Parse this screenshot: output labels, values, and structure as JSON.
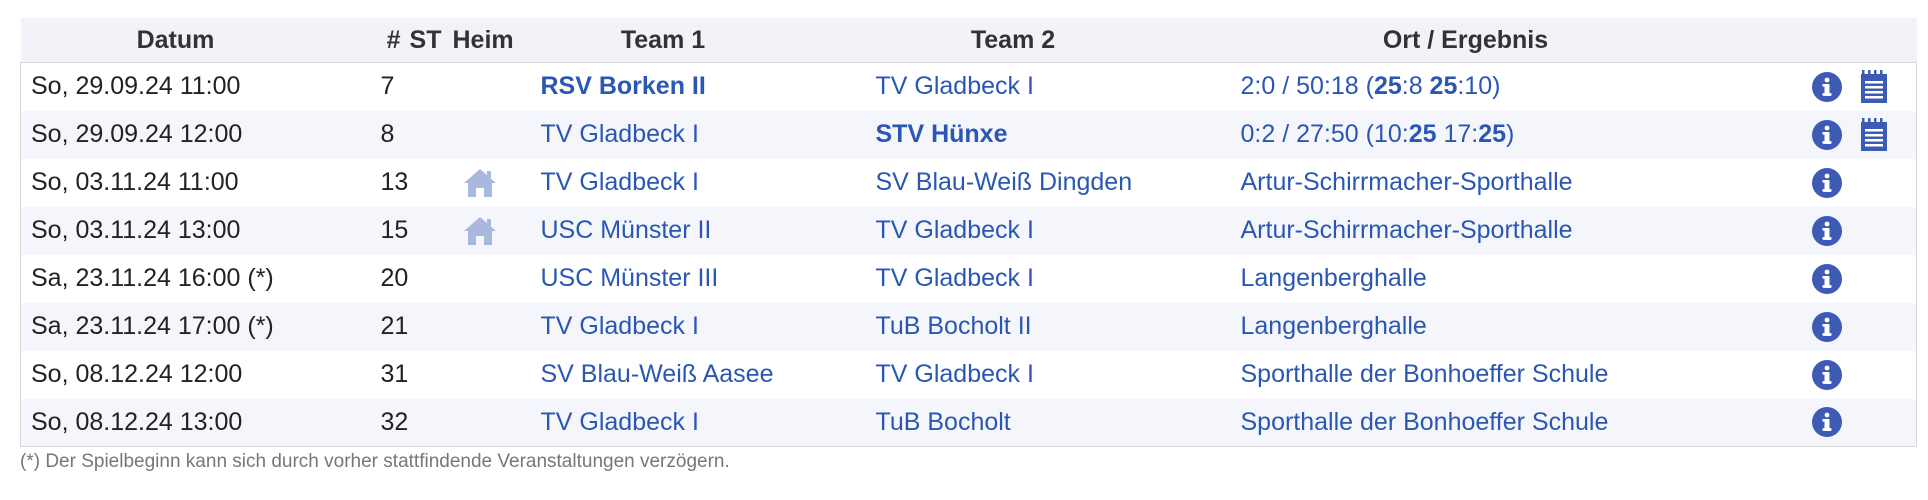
{
  "header": {
    "datum": "Datum",
    "nr": "#",
    "st": "ST",
    "heim": "Heim",
    "team1": "Team 1",
    "team2": "Team 2",
    "ort": "Ort / Ergebnis"
  },
  "rows": [
    {
      "datum": "So, 29.09.24 11:00",
      "nr": "7",
      "team1": "RSV Borken II",
      "team2": "TV Gladbeck I",
      "ort_main": "2:0 / 50:18 (",
      "s1a": "25",
      "s1b": ":8 ",
      "s2a": "25",
      "s2b": ":10)"
    },
    {
      "datum": "So, 29.09.24 12:00",
      "nr": "8",
      "team1": "TV Gladbeck I",
      "team2": "STV Hünxe",
      "ort_main": "0:2 / 27:50 (10:",
      "s1a": "25",
      "s1b": " 17:",
      "s2a": "25",
      "s2b": ")"
    },
    {
      "datum": "So, 03.11.24 11:00",
      "nr": "13",
      "team1": "TV Gladbeck I",
      "team2": "SV Blau-Weiß Dingden",
      "ort": "Artur-Schirrmacher-Sporthalle"
    },
    {
      "datum": "So, 03.11.24 13:00",
      "nr": "15",
      "team1": "USC Münster II",
      "team2": "TV Gladbeck I",
      "ort": "Artur-Schirrmacher-Sporthalle"
    },
    {
      "datum": "Sa, 23.11.24 16:00 (*)",
      "nr": "20",
      "team1": "USC Münster III",
      "team2": "TV Gladbeck I",
      "ort": "Langenberghalle"
    },
    {
      "datum": "Sa, 23.11.24 17:00 (*)",
      "nr": "21",
      "team1": "TV Gladbeck I",
      "team2": "TuB Bocholt II",
      "ort": "Langenberghalle"
    },
    {
      "datum": "So, 08.12.24 12:00",
      "nr": "31",
      "team1": "SV Blau-Weiß Aasee",
      "team2": "TV Gladbeck I",
      "ort": "Sporthalle der Bonhoeffer Schule"
    },
    {
      "datum": "So, 08.12.24 13:00",
      "nr": "32",
      "team1": "TV Gladbeck I",
      "team2": "TuB Bocholt",
      "ort": "Sporthalle der Bonhoeffer Schule"
    }
  ],
  "footnote": "(*) Der Spielbeginn kann sich durch vorher stattfindende Veranstaltungen verzögern.",
  "icons": {
    "info": "info-icon",
    "report": "report-icon",
    "home": "home-icon"
  },
  "colors": {
    "link": "#2a57b3",
    "icon": "#3d5bb5",
    "home": "#a9b8dd",
    "header_bg": "#f2f3f8",
    "row_alt": "#f5f6fb"
  }
}
